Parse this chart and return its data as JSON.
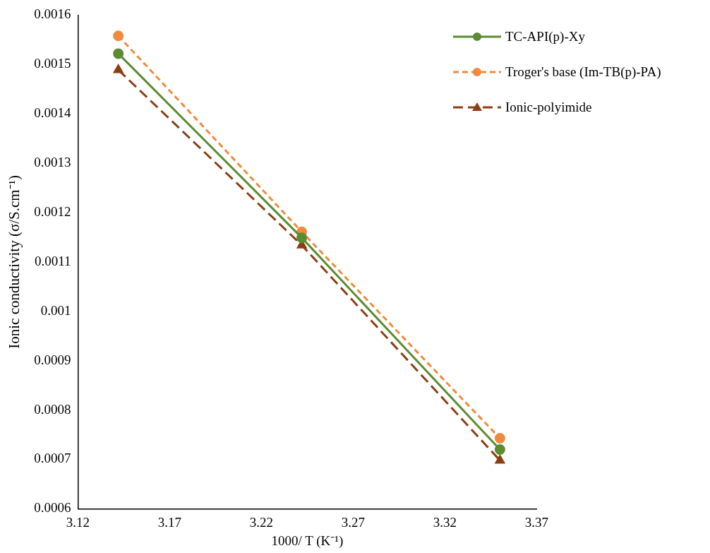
{
  "chart_data": {
    "type": "line",
    "xlabel": "1000/ T (K⁻¹)",
    "ylabel": "Ionic conductivity (σ/S.cm⁻¹)",
    "x": [
      3.142,
      3.242,
      3.35
    ],
    "series": [
      {
        "name": "TC-API(p)-Xy",
        "color": "#5b8c32",
        "values": [
          0.001522,
          0.001149,
          0.00072
        ],
        "marker": "circle",
        "line_style": "solid"
      },
      {
        "name": "Troger's base (Im-TB(p)-PA)",
        "color": "#f08a3c",
        "values": [
          0.001558,
          0.001161,
          0.000743
        ],
        "marker": "circle",
        "line_style": "dashed"
      },
      {
        "name": "Ionic-polyimide",
        "color": "#8b3f14",
        "values": [
          0.001489,
          0.001134,
          0.000698
        ],
        "marker": "triangle",
        "line_style": "dashed"
      }
    ],
    "xlim": [
      3.12,
      3.37
    ],
    "xticks": [
      3.12,
      3.17,
      3.22,
      3.27,
      3.32,
      3.37
    ],
    "ylim": [
      0.0006,
      0.0016
    ],
    "yticks": [
      0.0006,
      0.0007,
      0.0008,
      0.0009,
      0.001,
      0.0011,
      0.0012,
      0.0013,
      0.0014,
      0.0015,
      0.0016
    ],
    "grid": false,
    "legend": "right"
  }
}
